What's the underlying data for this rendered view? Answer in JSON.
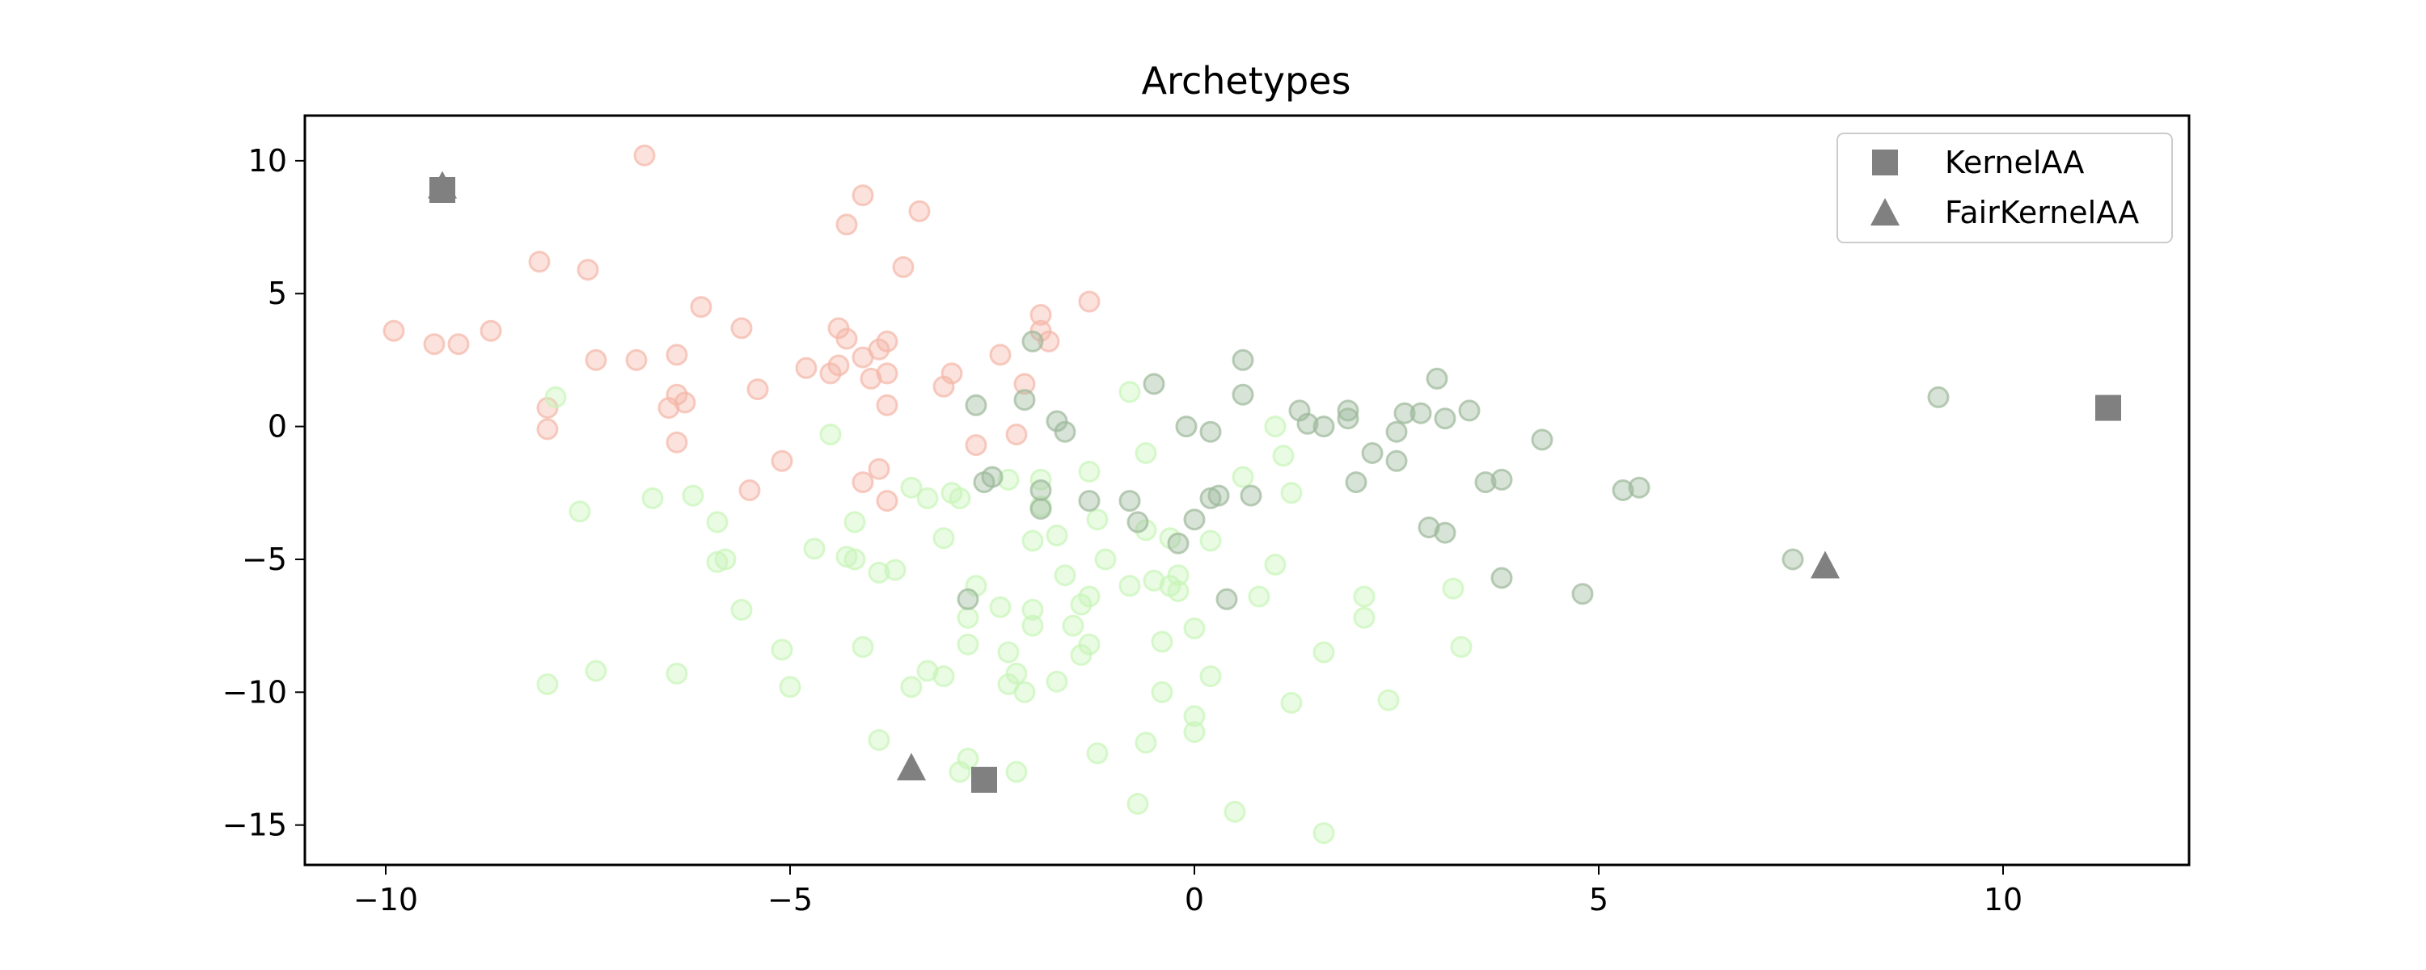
{
  "chart_data": {
    "type": "scatter",
    "title": "Archetypes",
    "xlabel": "",
    "ylabel": "",
    "xlim": [
      -11.0,
      12.3
    ],
    "ylim": [
      -16.5,
      11.7
    ],
    "xticks": [
      -10,
      -5,
      0,
      5,
      10
    ],
    "yticks": [
      10,
      5,
      0,
      -5,
      -10,
      -15
    ],
    "xtick_labels": [
      "−10",
      "−5",
      "0",
      "5",
      "10"
    ],
    "ytick_labels": [
      "10",
      "5",
      "0",
      "−5",
      "−10",
      "−15"
    ],
    "grid": false,
    "legend_position": "top-right",
    "series": [
      {
        "color": "#f4b6a8",
        "points": [
          [
            -9.9,
            3.6
          ],
          [
            -9.4,
            3.1
          ],
          [
            -9.1,
            3.1
          ],
          [
            -8.7,
            3.6
          ],
          [
            -8.1,
            6.2
          ],
          [
            -8.0,
            0.7
          ],
          [
            -8.0,
            -0.1
          ],
          [
            -7.5,
            5.9
          ],
          [
            -7.4,
            2.5
          ],
          [
            -6.9,
            2.5
          ],
          [
            -6.8,
            10.2
          ],
          [
            -6.5,
            0.7
          ],
          [
            -6.4,
            2.7
          ],
          [
            -6.4,
            1.2
          ],
          [
            -6.3,
            0.9
          ],
          [
            -6.4,
            -0.6
          ],
          [
            -6.1,
            4.5
          ],
          [
            -5.6,
            3.7
          ],
          [
            -5.4,
            1.4
          ],
          [
            -5.5,
            -2.4
          ],
          [
            -5.1,
            -1.3
          ],
          [
            -4.8,
            2.2
          ],
          [
            -4.5,
            2.0
          ],
          [
            -4.4,
            2.3
          ],
          [
            -4.4,
            3.7
          ],
          [
            -4.3,
            3.3
          ],
          [
            -4.3,
            7.6
          ],
          [
            -4.1,
            8.7
          ],
          [
            -4.1,
            2.6
          ],
          [
            -4.0,
            1.8
          ],
          [
            -3.9,
            2.9
          ],
          [
            -3.8,
            3.2
          ],
          [
            -3.8,
            2.0
          ],
          [
            -3.8,
            0.8
          ],
          [
            -4.1,
            -2.1
          ],
          [
            -3.9,
            -1.6
          ],
          [
            -3.8,
            -2.8
          ],
          [
            -3.6,
            6.0
          ],
          [
            -3.4,
            8.1
          ],
          [
            -3.1,
            1.5
          ],
          [
            -3.0,
            2.0
          ],
          [
            -2.7,
            -0.7
          ],
          [
            -2.4,
            2.7
          ],
          [
            -2.2,
            -0.3
          ],
          [
            -2.1,
            1.6
          ],
          [
            -1.9,
            3.6
          ],
          [
            -1.9,
            4.2
          ],
          [
            -1.8,
            3.2
          ],
          [
            -1.3,
            4.7
          ]
        ]
      },
      {
        "color": "#c7f5b8",
        "points": [
          [
            -7.9,
            1.1
          ],
          [
            -7.6,
            -3.2
          ],
          [
            -8.0,
            -9.7
          ],
          [
            -7.4,
            -9.2
          ],
          [
            -6.7,
            -2.7
          ],
          [
            -6.4,
            -9.3
          ],
          [
            -6.2,
            -2.6
          ],
          [
            -5.9,
            -5.1
          ],
          [
            -5.9,
            -3.6
          ],
          [
            -5.8,
            -5.0
          ],
          [
            -5.6,
            -6.9
          ],
          [
            -5.1,
            -8.4
          ],
          [
            -5.0,
            -9.8
          ],
          [
            -4.7,
            -4.6
          ],
          [
            -4.5,
            -0.3
          ],
          [
            -4.3,
            -4.9
          ],
          [
            -4.2,
            -5.0
          ],
          [
            -4.2,
            -3.6
          ],
          [
            -4.1,
            -8.3
          ],
          [
            -3.9,
            -5.5
          ],
          [
            -3.9,
            -11.8
          ],
          [
            -3.7,
            -5.4
          ],
          [
            -3.5,
            -2.3
          ],
          [
            -3.5,
            -9.8
          ],
          [
            -3.3,
            -2.7
          ],
          [
            -3.3,
            -9.2
          ],
          [
            -3.1,
            -9.4
          ],
          [
            -3.1,
            -4.2
          ],
          [
            -3.0,
            -2.5
          ],
          [
            -2.9,
            -2.7
          ],
          [
            -2.9,
            -13.0
          ],
          [
            -2.8,
            -8.2
          ],
          [
            -2.8,
            -12.5
          ],
          [
            -2.7,
            -6.0
          ],
          [
            -2.8,
            -7.2
          ],
          [
            -2.3,
            -8.5
          ],
          [
            -2.4,
            -6.8
          ],
          [
            -2.3,
            -9.7
          ],
          [
            -2.2,
            -9.3
          ],
          [
            -2.2,
            -13.0
          ],
          [
            -2.3,
            -2.0
          ],
          [
            -2.1,
            -10.0
          ],
          [
            -2.0,
            -7.5
          ],
          [
            -2.0,
            -6.9
          ],
          [
            -1.9,
            -2.0
          ],
          [
            -2.0,
            -4.3
          ],
          [
            -1.9,
            -3.0
          ],
          [
            -1.7,
            -4.1
          ],
          [
            -1.7,
            -9.6
          ],
          [
            -1.6,
            -5.6
          ],
          [
            -1.5,
            -7.5
          ],
          [
            -1.4,
            -6.7
          ],
          [
            -1.4,
            -8.6
          ],
          [
            -1.3,
            -6.4
          ],
          [
            -1.3,
            -1.7
          ],
          [
            -1.3,
            -8.2
          ],
          [
            -1.2,
            -3.5
          ],
          [
            -1.1,
            -5.0
          ],
          [
            -1.2,
            -12.3
          ],
          [
            -0.8,
            -6.0
          ],
          [
            -0.7,
            -14.2
          ],
          [
            -0.6,
            -11.9
          ],
          [
            -0.6,
            -1.0
          ],
          [
            -0.6,
            -3.9
          ],
          [
            -0.5,
            -5.8
          ],
          [
            -0.4,
            -8.1
          ],
          [
            -0.3,
            -6.0
          ],
          [
            -0.4,
            -10.0
          ],
          [
            -0.3,
            -4.2
          ],
          [
            -0.2,
            -5.6
          ],
          [
            -0.2,
            -6.2
          ],
          [
            0.0,
            -7.6
          ],
          [
            0.0,
            -10.9
          ],
          [
            0.0,
            -11.5
          ],
          [
            0.2,
            -4.3
          ],
          [
            0.2,
            -9.4
          ],
          [
            0.5,
            -14.5
          ],
          [
            0.6,
            -1.9
          ],
          [
            0.8,
            -6.4
          ],
          [
            1.0,
            -5.2
          ],
          [
            1.0,
            0.0
          ],
          [
            1.1,
            -1.1
          ],
          [
            1.2,
            -2.5
          ],
          [
            1.2,
            -10.4
          ],
          [
            1.6,
            -8.5
          ],
          [
            1.6,
            -15.3
          ],
          [
            2.1,
            -6.4
          ],
          [
            2.1,
            -7.2
          ],
          [
            2.4,
            -10.3
          ],
          [
            3.2,
            -6.1
          ],
          [
            3.3,
            -8.3
          ],
          [
            -0.8,
            1.3
          ]
        ]
      },
      {
        "color": "#9cb89a",
        "points": [
          [
            -2.7,
            0.8
          ],
          [
            -2.8,
            -6.5
          ],
          [
            -2.6,
            -2.1
          ],
          [
            -2.5,
            -1.9
          ],
          [
            -2.1,
            1.0
          ],
          [
            -2.0,
            3.2
          ],
          [
            -1.9,
            -2.4
          ],
          [
            -1.9,
            -3.1
          ],
          [
            -1.7,
            0.2
          ],
          [
            -1.6,
            -0.2
          ],
          [
            -1.3,
            -2.8
          ],
          [
            -0.8,
            -2.8
          ],
          [
            -0.7,
            -3.6
          ],
          [
            -0.5,
            1.6
          ],
          [
            -0.2,
            -4.4
          ],
          [
            -0.1,
            0.0
          ],
          [
            0.0,
            -3.5
          ],
          [
            0.2,
            -0.2
          ],
          [
            0.2,
            -2.7
          ],
          [
            0.3,
            -2.6
          ],
          [
            0.4,
            -6.5
          ],
          [
            0.6,
            1.2
          ],
          [
            0.6,
            2.5
          ],
          [
            0.7,
            -2.6
          ],
          [
            1.3,
            0.6
          ],
          [
            1.4,
            0.1
          ],
          [
            1.6,
            0.0
          ],
          [
            1.9,
            0.6
          ],
          [
            1.9,
            0.3
          ],
          [
            2.0,
            -2.1
          ],
          [
            2.2,
            -1.0
          ],
          [
            2.5,
            -1.3
          ],
          [
            2.5,
            -0.2
          ],
          [
            2.6,
            0.5
          ],
          [
            2.8,
            0.5
          ],
          [
            2.9,
            -3.8
          ],
          [
            3.0,
            1.8
          ],
          [
            3.1,
            0.3
          ],
          [
            3.1,
            -4.0
          ],
          [
            3.4,
            0.6
          ],
          [
            3.6,
            -2.1
          ],
          [
            3.8,
            -2.0
          ],
          [
            3.8,
            -5.7
          ],
          [
            4.3,
            -0.5
          ],
          [
            4.8,
            -6.3
          ],
          [
            5.3,
            -2.4
          ],
          [
            5.5,
            -2.3
          ],
          [
            7.4,
            -5.0
          ],
          [
            9.2,
            1.1
          ]
        ]
      }
    ],
    "archetypes": [
      {
        "name": "KernelAA",
        "marker": "square",
        "color": "#808080",
        "points": [
          [
            -9.3,
            8.9
          ],
          [
            -2.6,
            -13.3
          ],
          [
            11.3,
            0.7
          ]
        ]
      },
      {
        "name": "FairKernelAA",
        "marker": "triangle",
        "color": "#808080",
        "points": [
          [
            -3.5,
            -12.8
          ],
          [
            7.8,
            -5.2
          ],
          [
            -9.3,
            9.1
          ]
        ]
      }
    ]
  }
}
